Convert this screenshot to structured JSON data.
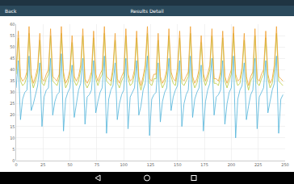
{
  "header": {
    "back": "Back",
    "title": "Results Detail"
  },
  "chart_data": {
    "type": "line",
    "grid": true,
    "tick_labels": true,
    "xlim": [
      0,
      250
    ],
    "xticks": [
      0,
      25,
      50,
      75,
      100,
      125,
      150,
      175,
      200,
      225,
      250
    ],
    "ylim": [
      0,
      60
    ],
    "yticks": [
      0,
      5,
      10,
      15,
      20,
      25,
      30,
      35,
      40,
      45,
      50,
      55,
      60
    ],
    "x": [
      0,
      2,
      4,
      6,
      8,
      10,
      12,
      14,
      16,
      18,
      20,
      22,
      24,
      26,
      28,
      30,
      32,
      34,
      36,
      38,
      40,
      42,
      44,
      46,
      48,
      50,
      52,
      54,
      56,
      58,
      60,
      62,
      64,
      66,
      68,
      70,
      72,
      74,
      76,
      78,
      80,
      82,
      84,
      86,
      88,
      90,
      92,
      94,
      96,
      98,
      100,
      102,
      104,
      106,
      108,
      110,
      112,
      114,
      116,
      118,
      120,
      122,
      124,
      126,
      128,
      130,
      132,
      134,
      136,
      138,
      140,
      142,
      144,
      146,
      148,
      150,
      152,
      154,
      156,
      158,
      160,
      162,
      164,
      166,
      168,
      170,
      172,
      174,
      176,
      178,
      180,
      182,
      184,
      186,
      188,
      190,
      192,
      194,
      196,
      198,
      200,
      202,
      204,
      206,
      208,
      210,
      212,
      214,
      216,
      218,
      220,
      222,
      224,
      226,
      228,
      230,
      232,
      234,
      236,
      238,
      240,
      242,
      244,
      246,
      248
    ],
    "series": [
      {
        "color": "#4fb3d9",
        "values": [
          32,
          44,
          18,
          27,
          30,
          31,
          46,
          22,
          25,
          29,
          33,
          43,
          15,
          28,
          31,
          32,
          45,
          20,
          26,
          29,
          30,
          47,
          13,
          27,
          30,
          32,
          42,
          19,
          25,
          31,
          34,
          45,
          16,
          28,
          29,
          31,
          44,
          21,
          26,
          30,
          32,
          46,
          12,
          27,
          31,
          33,
          43,
          18,
          25,
          29,
          31,
          45,
          14,
          28,
          30,
          32,
          44,
          20,
          24,
          31,
          34,
          46,
          11,
          27,
          29,
          30,
          43,
          17,
          26,
          30,
          32,
          45,
          22,
          28,
          31,
          33,
          44,
          15,
          25,
          29,
          31,
          46,
          19,
          27,
          30,
          32,
          42,
          13,
          26,
          31,
          34,
          45,
          20,
          28,
          29,
          31,
          44,
          16,
          25,
          30,
          32,
          46,
          10,
          27,
          31,
          33,
          43,
          18,
          24,
          29,
          31,
          45,
          14,
          28,
          30,
          32,
          44,
          21,
          26,
          31,
          34,
          46,
          12,
          27,
          29
        ]
      },
      {
        "color": "#b7c93a",
        "values": [
          38,
          54,
          35,
          33,
          34,
          37,
          56,
          36,
          32,
          35,
          39,
          53,
          34,
          33,
          36,
          38,
          55,
          35,
          34,
          33,
          36,
          56,
          37,
          32,
          34,
          38,
          52,
          35,
          33,
          35,
          40,
          55,
          34,
          32,
          34,
          37,
          54,
          36,
          33,
          36,
          38,
          56,
          35,
          34,
          33,
          39,
          53,
          34,
          32,
          35,
          37,
          55,
          36,
          33,
          34,
          38,
          54,
          35,
          31,
          35,
          40,
          56,
          34,
          33,
          36,
          36,
          53,
          35,
          32,
          34,
          38,
          55,
          37,
          34,
          33,
          39,
          54,
          34,
          33,
          35,
          37,
          56,
          35,
          32,
          34,
          38,
          52,
          36,
          33,
          36,
          40,
          55,
          34,
          34,
          33,
          37,
          54,
          35,
          32,
          35,
          38,
          56,
          36,
          33,
          34,
          39,
          53,
          35,
          31,
          35,
          37,
          55,
          34,
          33,
          36,
          38,
          54,
          36,
          32,
          34,
          40,
          56,
          35,
          34,
          33
        ]
      },
      {
        "color": "#f0a030",
        "values": [
          40,
          57,
          37,
          35,
          36,
          39,
          59,
          38,
          34,
          37,
          41,
          56,
          36,
          35,
          38,
          40,
          58,
          37,
          36,
          35,
          38,
          59,
          39,
          34,
          36,
          40,
          55,
          37,
          35,
          37,
          42,
          58,
          36,
          34,
          36,
          39,
          57,
          38,
          35,
          38,
          40,
          59,
          37,
          36,
          35,
          41,
          56,
          36,
          34,
          37,
          39,
          58,
          38,
          35,
          36,
          40,
          57,
          37,
          33,
          37,
          42,
          59,
          36,
          35,
          38,
          38,
          56,
          37,
          34,
          36,
          40,
          58,
          39,
          36,
          35,
          41,
          57,
          36,
          35,
          37,
          39,
          59,
          37,
          34,
          36,
          40,
          55,
          38,
          35,
          38,
          42,
          58,
          36,
          36,
          35,
          39,
          57,
          37,
          34,
          37,
          40,
          59,
          38,
          35,
          36,
          41,
          56,
          37,
          33,
          37,
          39,
          58,
          36,
          35,
          38,
          40,
          57,
          38,
          34,
          36,
          42,
          59,
          37,
          36,
          35
        ]
      }
    ]
  }
}
